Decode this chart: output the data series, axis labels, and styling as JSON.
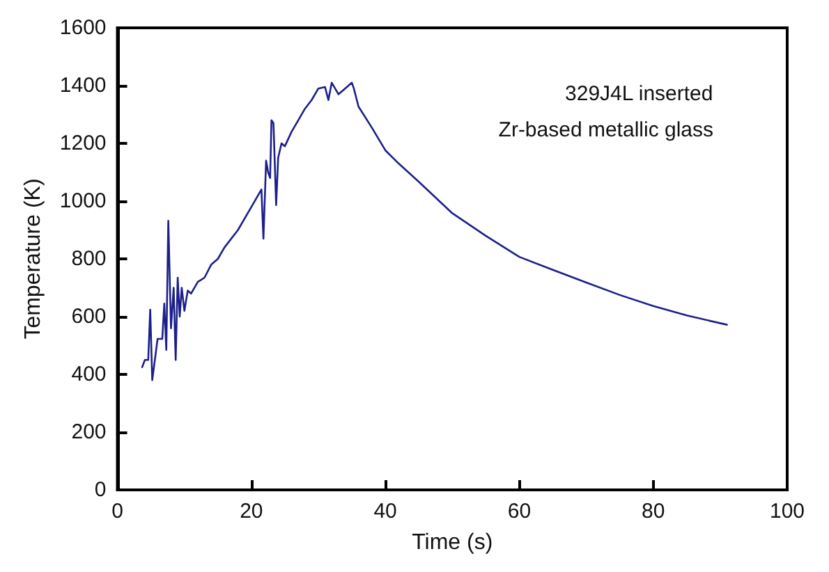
{
  "chart_data": {
    "type": "line",
    "xlabel": "Time (s)",
    "ylabel": "Temperature (K)",
    "annotations": [
      "329J4L inserted",
      "Zr-based metallic glass"
    ],
    "xlim": [
      0,
      100
    ],
    "xticks": [
      0,
      20,
      40,
      60,
      80,
      100
    ],
    "ylim": [
      0,
      1600
    ],
    "yticks": [
      0,
      200,
      400,
      600,
      800,
      1000,
      1200,
      1400,
      1600
    ],
    "grid": false,
    "marker": "none",
    "line_style": "solid",
    "series": [
      {
        "color": "#1c1f8a",
        "x": [
          3.7,
          4.1,
          4.6,
          4.9,
          5.2,
          6.0,
          6.7,
          7.0,
          7.3,
          7.6,
          8.0,
          8.4,
          8.7,
          9.0,
          9.3,
          9.6,
          10,
          10.5,
          11,
          12,
          13,
          14,
          15,
          16,
          18,
          20,
          21.5,
          21.8,
          22.2,
          22.5,
          22.8,
          23,
          23.3,
          23.7,
          24,
          24.5,
          25,
          26,
          27,
          28,
          29,
          30,
          31,
          31.5,
          32,
          33,
          34,
          35,
          35.3,
          36,
          38,
          40,
          42,
          45,
          50,
          55,
          60,
          65,
          70,
          75,
          80,
          85,
          91
        ],
        "values": [
          425,
          450,
          450,
          624,
          380,
          523,
          523,
          645,
          485,
          932,
          560,
          700,
          450,
          735,
          600,
          700,
          620,
          690,
          680,
          720,
          735,
          780,
          800,
          840,
          900,
          980,
          1040,
          870,
          1140,
          1100,
          1080,
          1280,
          1270,
          986,
          1150,
          1200,
          1190,
          1240,
          1280,
          1320,
          1350,
          1390,
          1395,
          1350,
          1410,
          1370,
          1390,
          1410,
          1390,
          1327,
          1254,
          1176,
          1130,
          1067,
          958,
          880,
          807,
          762,
          718,
          675,
          637,
          604,
          572
        ]
      }
    ]
  }
}
